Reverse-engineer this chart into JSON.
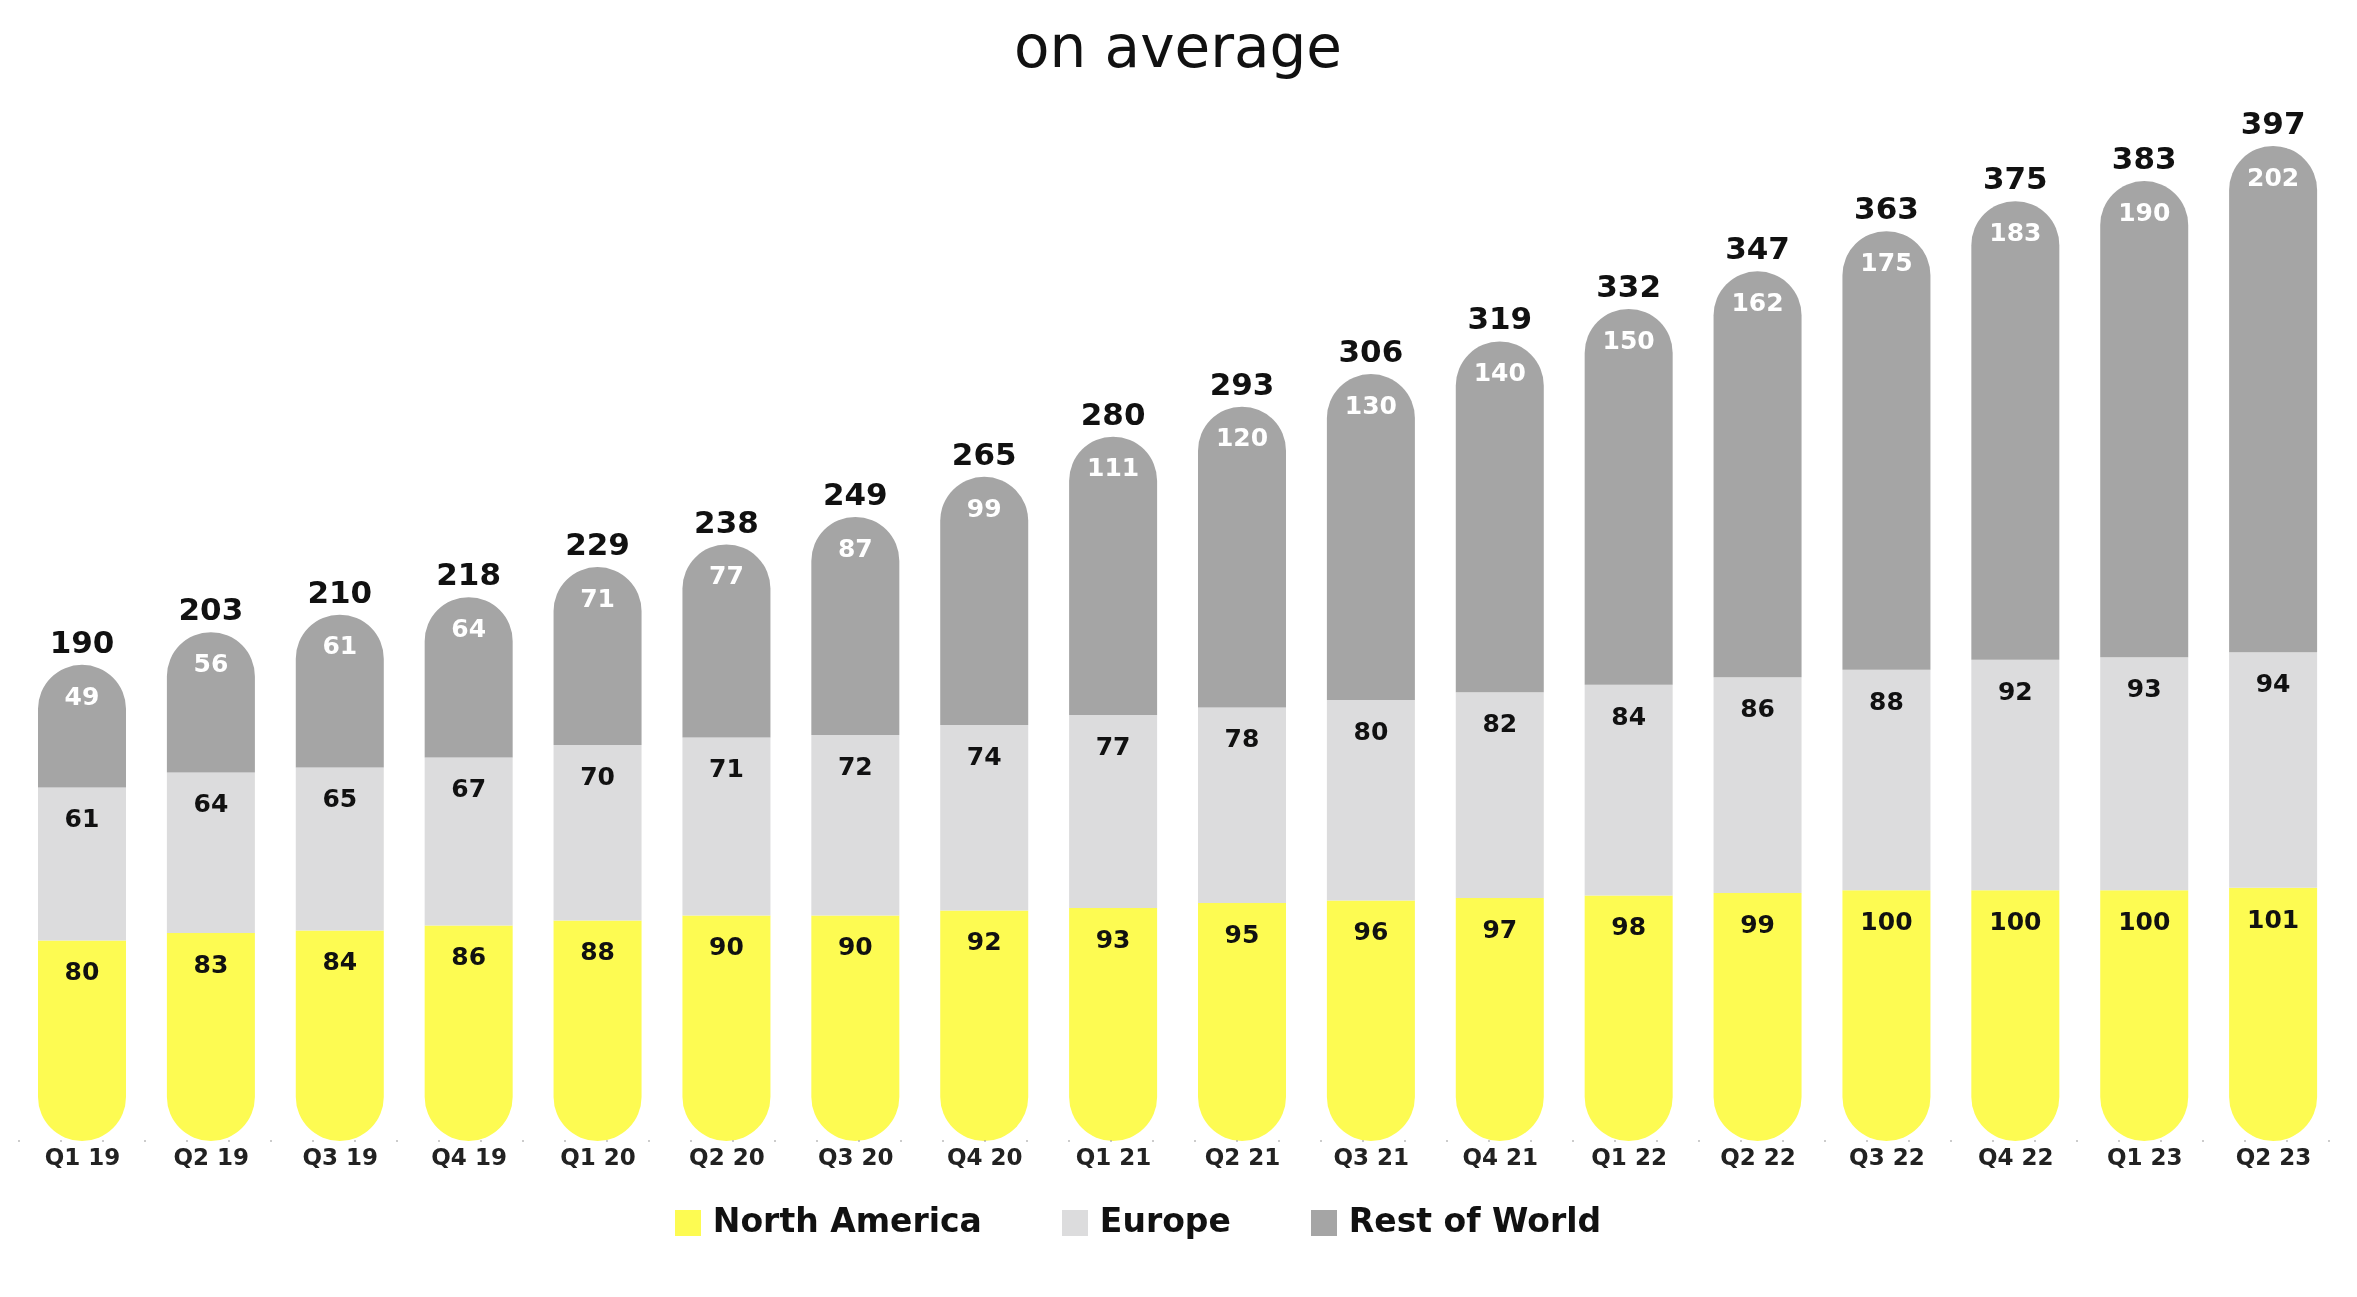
{
  "chart_data": {
    "type": "bar",
    "title": "on average",
    "stacked": true,
    "data_labels": true,
    "legend": "bottom",
    "tick_labels": "x",
    "grid": false,
    "categories": [
      "Q1 19",
      "Q2 19",
      "Q3 19",
      "Q4 19",
      "Q1 20",
      "Q2 20",
      "Q3 20",
      "Q4 20",
      "Q1 21",
      "Q2 21",
      "Q3 21",
      "Q4 21",
      "Q1 22",
      "Q2 22",
      "Q3 22",
      "Q4 22",
      "Q1 23",
      "Q2 23"
    ],
    "series": [
      {
        "name": "North America",
        "color": "#fdfb52",
        "values": [
          80,
          83,
          84,
          86,
          88,
          90,
          90,
          92,
          93,
          95,
          96,
          97,
          98,
          99,
          100,
          100,
          100,
          101
        ]
      },
      {
        "name": "Europe",
        "color": "#dcdcdd",
        "values": [
          61,
          64,
          65,
          67,
          70,
          71,
          72,
          74,
          77,
          78,
          80,
          82,
          84,
          86,
          88,
          92,
          93,
          94
        ]
      },
      {
        "name": "Rest of World",
        "color": "#a5a5a5",
        "values": [
          49,
          56,
          61,
          64,
          71,
          77,
          87,
          99,
          111,
          120,
          130,
          140,
          150,
          162,
          175,
          183,
          190,
          202
        ]
      }
    ],
    "totals": [
      "190",
      "203",
      "210",
      "218",
      "229",
      "238",
      "249",
      "265",
      "280",
      "293",
      "306",
      "319",
      "332",
      "347",
      "363",
      "375",
      "383",
      "397"
    ]
  }
}
